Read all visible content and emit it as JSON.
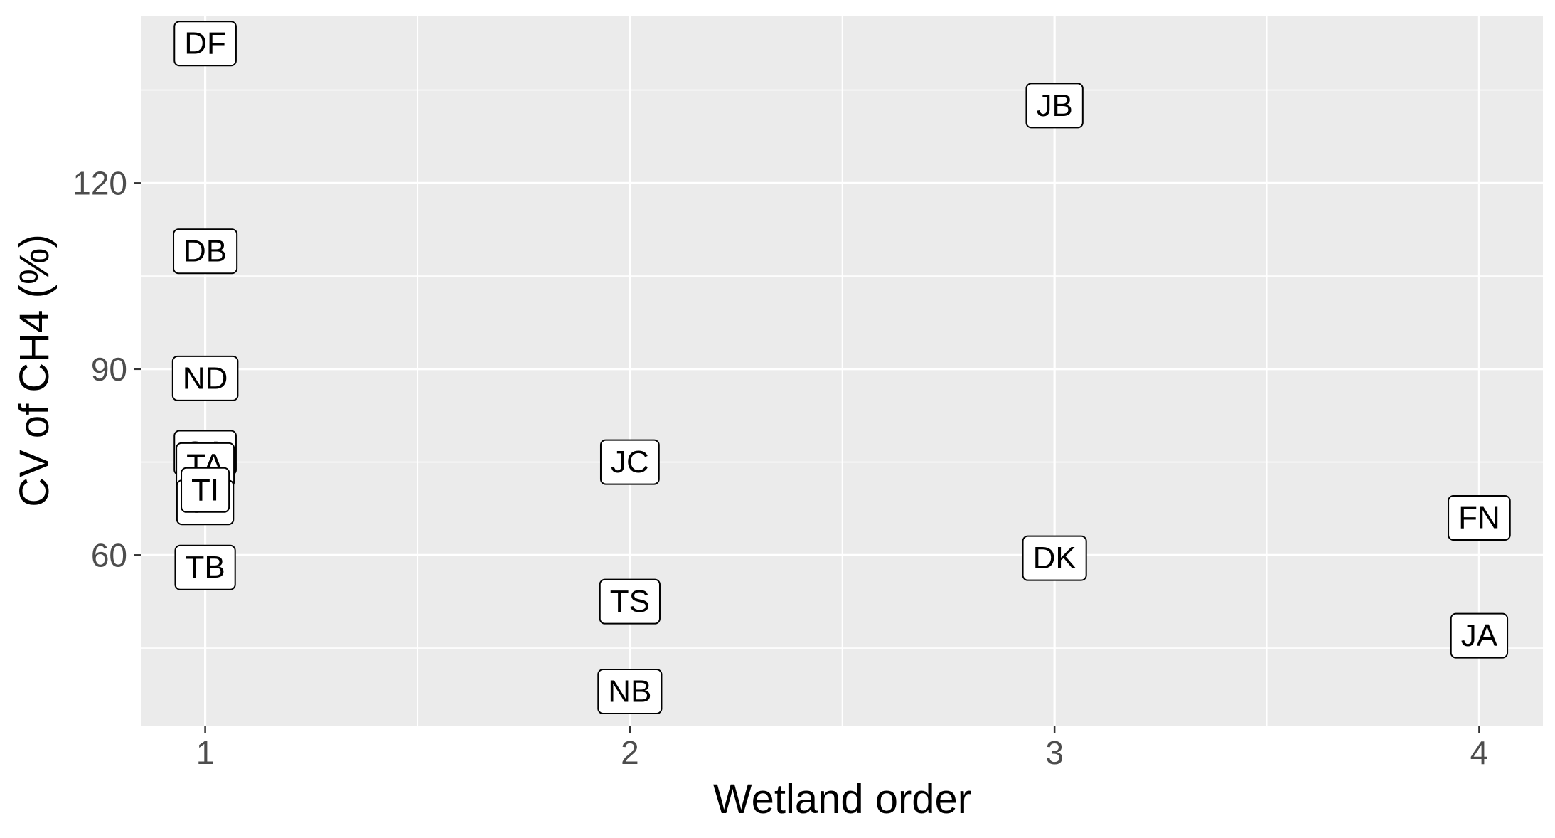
{
  "chart_data": {
    "type": "scatter",
    "title": "",
    "xlabel": "Wetland order",
    "ylabel": "CV of CH4 (%)",
    "xlim": [
      0.85,
      4.15
    ],
    "ylim": [
      32.5,
      147
    ],
    "x_ticks": [
      1,
      2,
      3,
      4
    ],
    "x_tick_labels": [
      "1",
      "2",
      "3",
      "4"
    ],
    "y_ticks": [
      60,
      90,
      120
    ],
    "y_tick_labels": [
      "60",
      "90",
      "120"
    ],
    "grid": true,
    "legend": "none",
    "panel_background": "#ebebeb",
    "grid_color": "#ffffff",
    "points": [
      {
        "label": "DF",
        "x": 1,
        "y": 142.5
      },
      {
        "label": "DB",
        "x": 1,
        "y": 109
      },
      {
        "label": "ND",
        "x": 1,
        "y": 88.5
      },
      {
        "label": "SA",
        "x": 1,
        "y": 76.5
      },
      {
        "label": "TA",
        "x": 1,
        "y": 74.5
      },
      {
        "label": "TL",
        "x": 1,
        "y": 68.5
      },
      {
        "label": "TI",
        "x": 1,
        "y": 70.5
      },
      {
        "label": "TB",
        "x": 1,
        "y": 58
      },
      {
        "label": "JC",
        "x": 2,
        "y": 75
      },
      {
        "label": "TS",
        "x": 2,
        "y": 52.5
      },
      {
        "label": "NB",
        "x": 2,
        "y": 38
      },
      {
        "label": "JB",
        "x": 3,
        "y": 132.5
      },
      {
        "label": "DK",
        "x": 3,
        "y": 59.5
      },
      {
        "label": "FN",
        "x": 4,
        "y": 66
      },
      {
        "label": "JA",
        "x": 4,
        "y": 47
      }
    ]
  }
}
